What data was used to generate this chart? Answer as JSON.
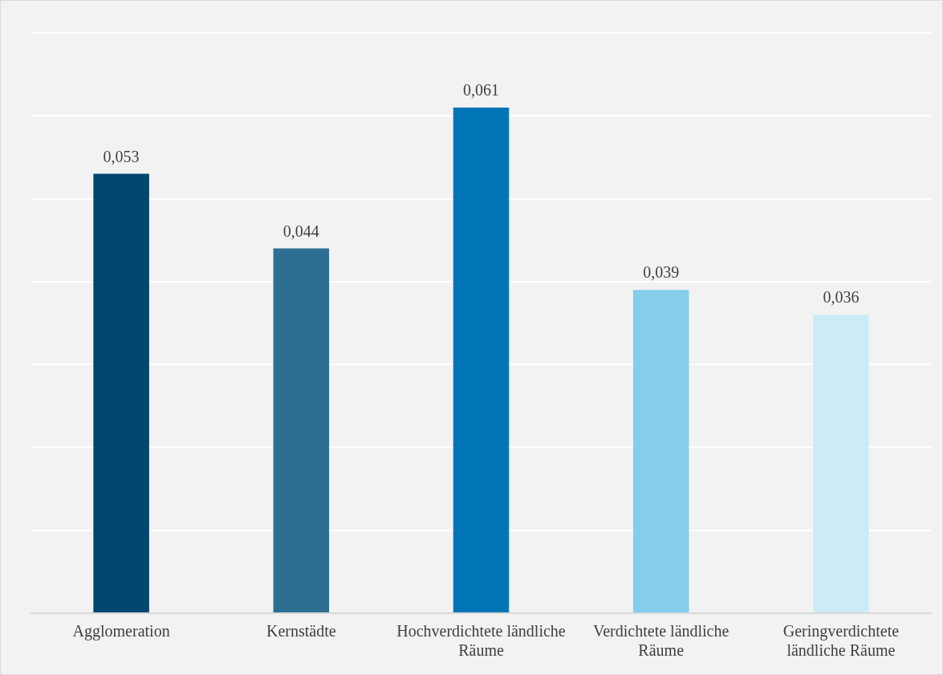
{
  "chart_data": {
    "type": "bar",
    "categories": [
      "Agglomeration",
      "Kernstädte",
      "Hochverdichtete ländliche Räume",
      "Verdichtete ländliche Räume",
      "Geringverdichtete ländliche Räume"
    ],
    "values": [
      0.053,
      0.044,
      0.061,
      0.039,
      0.036
    ],
    "colors": [
      "#00466f",
      "#2e6e93",
      "#0075b6",
      "#84cdeb",
      "#cdebf6"
    ],
    "value_labels": [
      "0,053",
      "0,044",
      "0,061",
      "0,039",
      "0,036"
    ],
    "ylim": [
      0,
      0.07
    ],
    "yticks": [
      {
        "value": 0,
        "label": null
      },
      {
        "value": 0.01,
        "label": null
      },
      {
        "value": 0.02,
        "label": null
      },
      {
        "value": 0.03,
        "label": null
      },
      {
        "value": 0.04,
        "label": null
      },
      {
        "value": 0.05,
        "label": null
      },
      {
        "value": 0.06,
        "label": null
      },
      {
        "value": 0.07,
        "label": null
      }
    ],
    "grid": "y",
    "legend": false,
    "tick_labels": "x"
  }
}
